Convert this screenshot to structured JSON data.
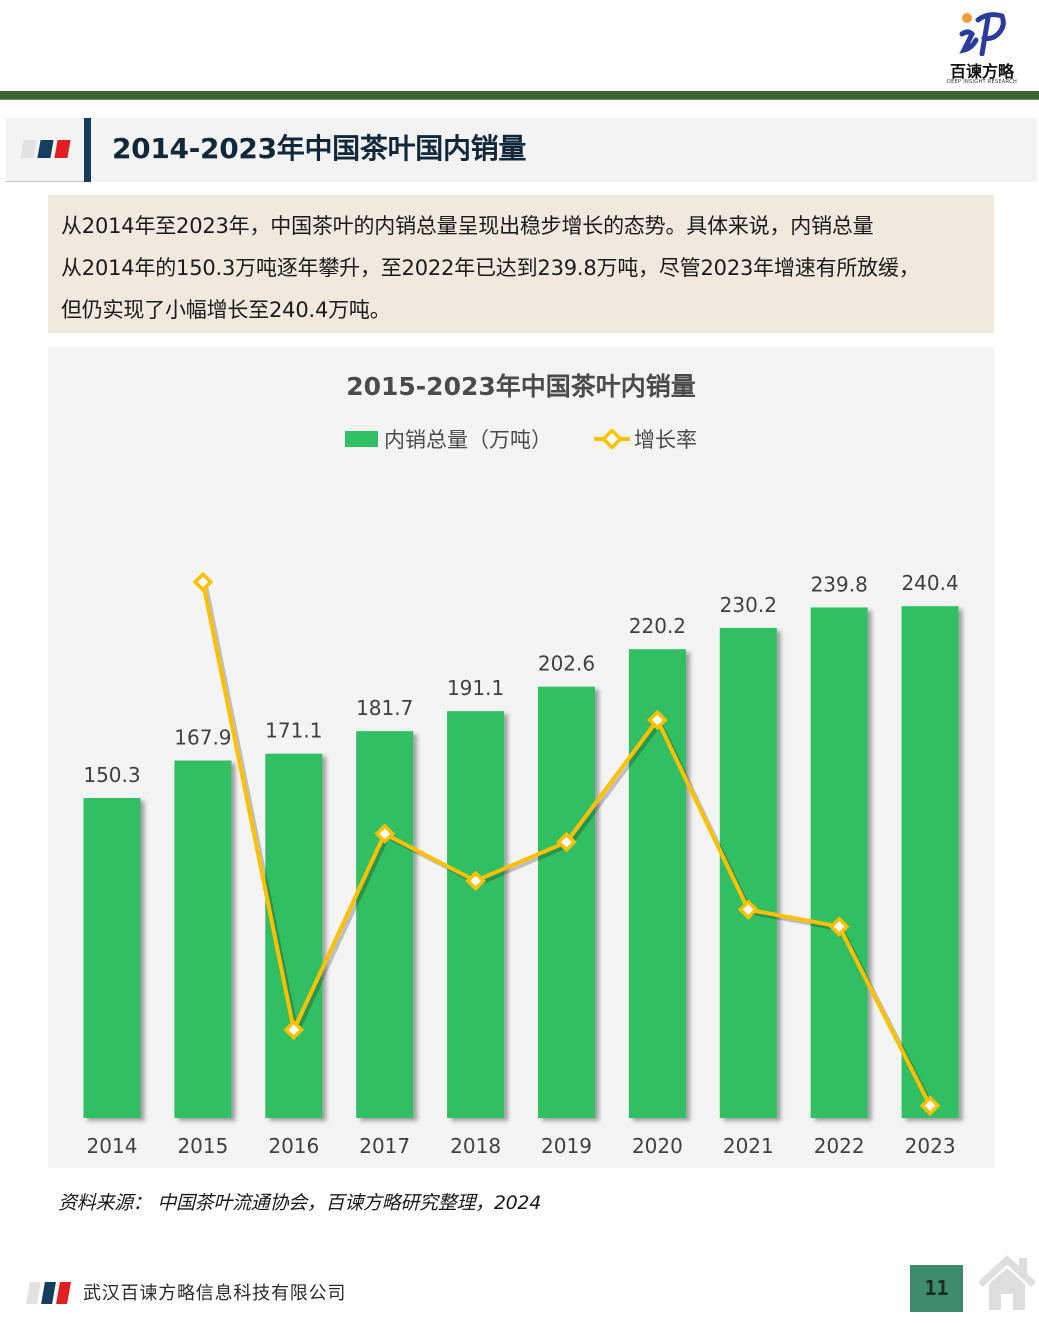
{
  "brand": {
    "name": "百谏方略",
    "tagline": "DEEP INSIGHT RESEARCH",
    "colors": {
      "dark_green_rule": "#3d6331",
      "navy": "#153e5c",
      "red": "#e02020",
      "light_gray": "#e2e2e2"
    }
  },
  "section": {
    "title": "2014-2023年中国茶叶国内销量"
  },
  "summary": {
    "lines": [
      "从2014年至2023年，中国茶叶的内销总量呈现出稳步增长的态势。具体来说，内销总量",
      "从2014年的150.3万吨逐年攀升，至2022年已达到239.8万吨，尽管2023年增速有所放缓，",
      "但仍实现了小幅增长至240.4万吨。"
    ]
  },
  "chart": {
    "title": "2015-2023年中国茶叶内销量",
    "legend": {
      "bar": "内销总量（万吨）",
      "line": "增长率"
    },
    "colors": {
      "bar": "#31bf63",
      "line": "#ffc000",
      "marker_fill": "#ffffff"
    }
  },
  "chart_data": {
    "type": "bar",
    "title": "2015-2023年中国茶叶内销量",
    "categories": [
      "2014",
      "2015",
      "2016",
      "2017",
      "2018",
      "2019",
      "2020",
      "2021",
      "2022",
      "2023"
    ],
    "series": [
      {
        "name": "内销总量（万吨）",
        "type": "bar",
        "values": [
          150.3,
          167.9,
          171.1,
          181.7,
          191.1,
          202.6,
          220.2,
          230.2,
          239.8,
          240.4
        ],
        "data_labels": [
          "150.3",
          "167.9",
          "171.1",
          "181.7",
          "191.1",
          "202.6",
          "220.2",
          "230.2",
          "239.8",
          "240.4"
        ]
      },
      {
        "name": "增长率",
        "type": "line",
        "secondary_axis": true,
        "values": [
          null,
          11.71,
          1.91,
          6.2,
          5.17,
          6.02,
          8.69,
          4.54,
          4.17,
          0.25
        ],
        "unit": "%"
      }
    ],
    "xlabel": "",
    "ylabel": "",
    "ylim": [
      0,
      300
    ],
    "grid": false,
    "legend_position": "top",
    "axes_visible": false
  },
  "source": "资料来源：  中国茶叶流通协会，百谏方略研究整理，2024",
  "footer": {
    "company": "武汉百谏方略信息科技有限公司",
    "page": "11",
    "home_icon": "home-icon"
  }
}
